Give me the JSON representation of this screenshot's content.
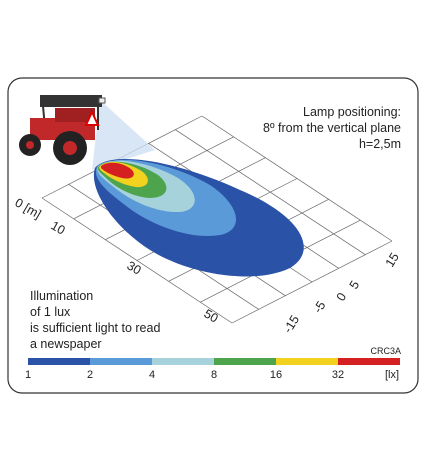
{
  "lamp_note": {
    "line1": "Lamp positioning:",
    "line2": "8º from the vertical plane",
    "line3": "h=2,5m"
  },
  "distance_labels": [
    "0 [m]",
    "10",
    "30",
    "50"
  ],
  "lateral_labels": [
    "15",
    "5",
    "0",
    "-5",
    "-15"
  ],
  "illumination_note": {
    "line1": "Illumination",
    "line2": "of 1 lux",
    "line3": "is sufficient light to read",
    "line4": "a newspaper"
  },
  "code": "CRC3A",
  "scale_labels": [
    "1",
    "2",
    "4",
    "8",
    "16",
    "32",
    "[lx]"
  ]
}
